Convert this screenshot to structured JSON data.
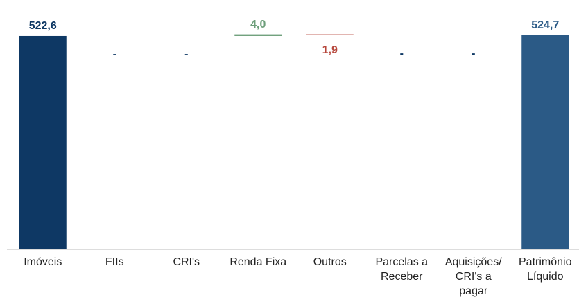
{
  "chart_data": {
    "type": "waterfall",
    "categories": [
      "Imóveis",
      "FIIs",
      "CRI's",
      "Renda Fixa",
      "Outros",
      "Parcelas a Receber",
      "Aquisições/ CRI's a pagar",
      "Patrimônio Líquido"
    ],
    "values": [
      522.6,
      0,
      0,
      4.0,
      -1.9,
      0,
      0,
      524.7
    ],
    "value_labels": [
      "522,6",
      "-",
      "-",
      "4,0",
      "1,9",
      "-",
      "-",
      "524,7"
    ],
    "is_total": [
      true,
      false,
      false,
      false,
      false,
      false,
      false,
      true
    ],
    "colors": [
      "#0e3864",
      "#0e3864",
      "#0e3864",
      "#6d9e7a",
      "#b6463b",
      "#0e3864",
      "#0e3864",
      "#2b5a86"
    ],
    "ylim": [
      0,
      530
    ]
  }
}
